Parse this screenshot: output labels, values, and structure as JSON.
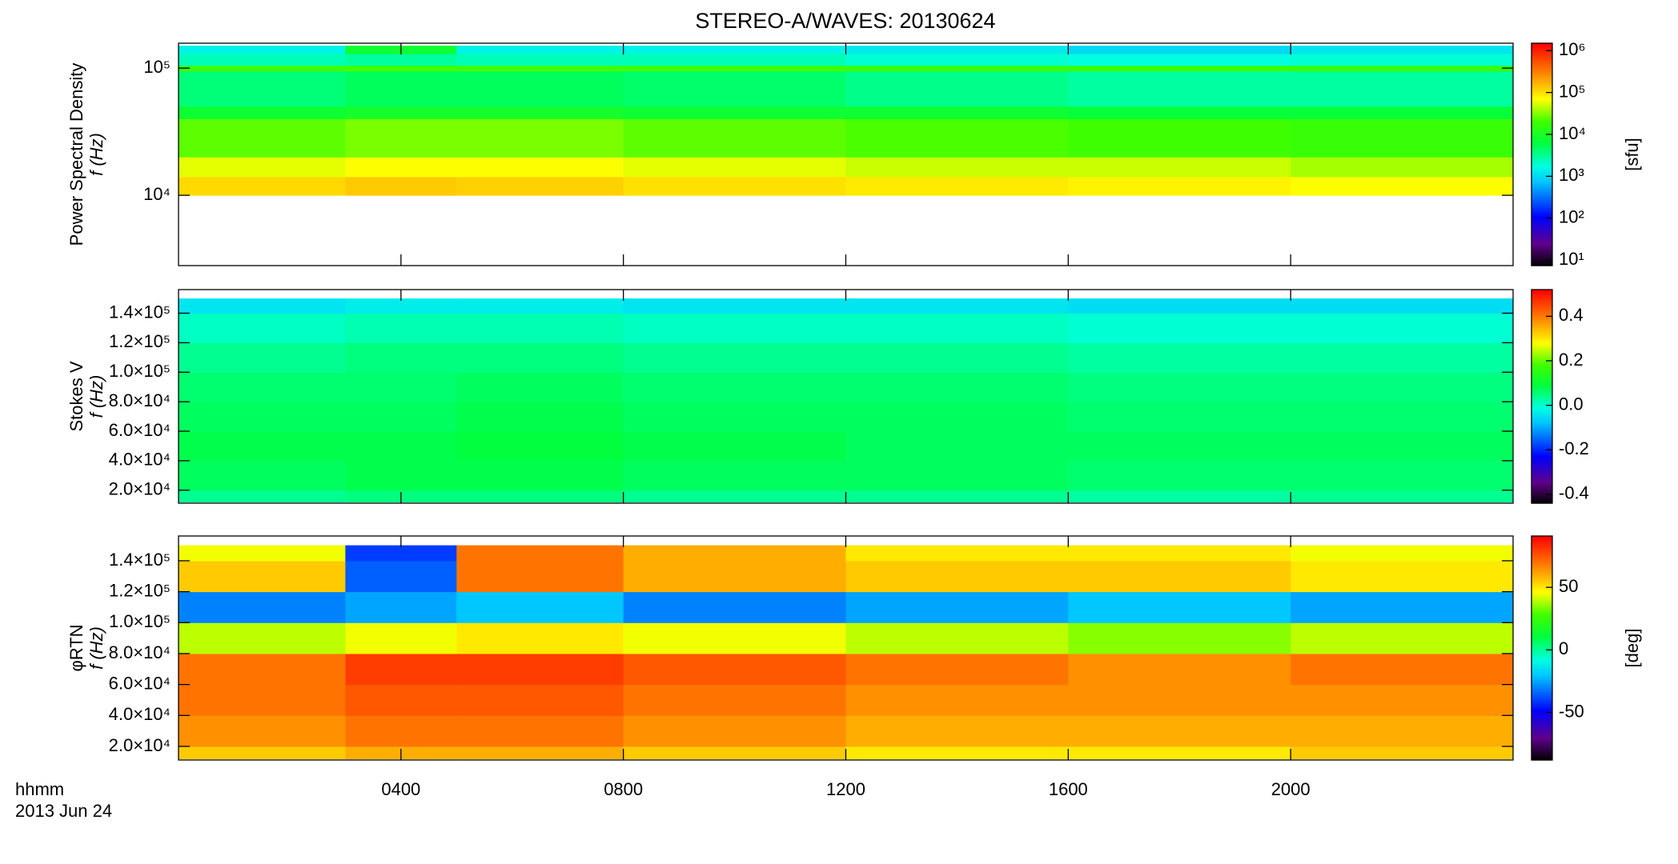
{
  "chart_data": [
    {
      "type": "heatmap",
      "title": "STEREO-A/WAVES: 20130624",
      "ylabel": "Power Spectral Density",
      "ylabel2": "f (Hz)",
      "zlabel": "[sfu]",
      "ylog": true,
      "zlog": true,
      "xlim": [
        0,
        24
      ],
      "ylim": [
        2800,
        157000
      ],
      "zlim": [
        7.4,
        1500000
      ],
      "yticks": [
        {
          "value": 10000,
          "label": "10⁴"
        },
        {
          "value": 100000,
          "label": "10⁵"
        }
      ],
      "zticks": [
        {
          "value": 10,
          "label": "10¹"
        },
        {
          "value": 100,
          "label": "10²"
        },
        {
          "value": 1000,
          "label": "10³"
        },
        {
          "value": 10000,
          "label": "10⁴"
        },
        {
          "value": 100000,
          "label": "10⁵"
        },
        {
          "value": 1000000,
          "label": "10⁶"
        }
      ],
      "xbins": [
        0,
        3,
        5,
        8,
        12,
        16,
        20,
        24
      ],
      "ybins": [
        10000,
        14000,
        20000,
        40000,
        50000,
        95000,
        105000,
        130000,
        150000
      ],
      "z": [
        [
          110000,
          130000,
          120000,
          100000,
          90000,
          80000,
          70000
        ],
        [
          60000,
          70000,
          70000,
          60000,
          50000,
          50000,
          40000
        ],
        [
          25000,
          30000,
          30000,
          25000,
          22000,
          20000,
          18000
        ],
        [
          8000,
          9000,
          9000,
          8000,
          8000,
          7000,
          7000
        ],
        [
          4000,
          5000,
          5000,
          4500,
          3500,
          3000,
          3000
        ],
        [
          20000,
          20000,
          20000,
          20000,
          18000,
          18000,
          18000
        ],
        [
          2500,
          3000,
          2500,
          2500,
          2000,
          1800,
          2000
        ],
        [
          1500,
          8000,
          1500,
          1500,
          1300,
          1000,
          1200
        ]
      ]
    },
    {
      "type": "heatmap",
      "ylabel": "Stokes V",
      "ylabel2": "f (Hz)",
      "ylog": false,
      "zlog": false,
      "xlim": [
        0,
        24
      ],
      "ylim": [
        11200,
        156000
      ],
      "zlim": [
        -0.44,
        0.52
      ],
      "yticks": [
        {
          "value": 20000,
          "label": "2.0×10⁴"
        },
        {
          "value": 40000,
          "label": "4.0×10⁴"
        },
        {
          "value": 60000,
          "label": "6.0×10⁴"
        },
        {
          "value": 80000,
          "label": "8.0×10⁴"
        },
        {
          "value": 100000,
          "label": "1.0×10⁵"
        },
        {
          "value": 120000,
          "label": "1.2×10⁵"
        },
        {
          "value": 140000,
          "label": "1.4×10⁵"
        }
      ],
      "zticks": [
        -0.4,
        -0.2,
        {
          "value": 0,
          "label": "0.0"
        },
        0.2,
        0.4
      ],
      "xbins": [
        0,
        3,
        5,
        8,
        12,
        16,
        20,
        24
      ],
      "ybins": [
        12000,
        20000,
        40000,
        60000,
        80000,
        100000,
        120000,
        140000,
        150000
      ],
      "z": [
        [
          0.04,
          0.05,
          0.05,
          0.04,
          0.04,
          0.03,
          0.04
        ],
        [
          0.07,
          0.08,
          0.08,
          0.07,
          0.07,
          0.06,
          0.06
        ],
        [
          0.08,
          0.08,
          0.09,
          0.08,
          0.07,
          0.07,
          0.07
        ],
        [
          0.07,
          0.07,
          0.08,
          0.07,
          0.07,
          0.06,
          0.06
        ],
        [
          0.06,
          0.06,
          0.07,
          0.06,
          0.06,
          0.05,
          0.05
        ],
        [
          0.04,
          0.05,
          0.05,
          0.04,
          0.04,
          0.03,
          0.03
        ],
        [
          0.01,
          0.02,
          0.02,
          0.01,
          0.01,
          0.0,
          0.0
        ],
        [
          -0.04,
          -0.03,
          -0.03,
          -0.04,
          -0.04,
          -0.05,
          -0.05
        ]
      ]
    },
    {
      "type": "heatmap",
      "ylabel": "φRTN",
      "ylabel2": "f (Hz)",
      "zlabel": "[deg]",
      "ylog": false,
      "zlog": false,
      "xlim": [
        0,
        24
      ],
      "ylim": [
        11200,
        156000
      ],
      "zlim": [
        -88,
        91
      ],
      "yticks": [
        {
          "value": 20000,
          "label": "2.0×10⁴"
        },
        {
          "value": 40000,
          "label": "4.0×10⁴"
        },
        {
          "value": 60000,
          "label": "6.0×10⁴"
        },
        {
          "value": 80000,
          "label": "8.0×10⁴"
        },
        {
          "value": 100000,
          "label": "1.0×10⁵"
        },
        {
          "value": 120000,
          "label": "1.2×10⁵"
        },
        {
          "value": 140000,
          "label": "1.4×10⁵"
        }
      ],
      "zticks": [
        -50,
        0,
        50
      ],
      "xticks": [
        {
          "value": 4,
          "label": "0400"
        },
        {
          "value": 8,
          "label": "0800"
        },
        {
          "value": 12,
          "label": "1200"
        },
        {
          "value": 16,
          "label": "1600"
        },
        {
          "value": 20,
          "label": "2000"
        }
      ],
      "xlabel": "hhmm",
      "date": "2013 Jun 24",
      "xbins": [
        0,
        3,
        5,
        8,
        12,
        16,
        20,
        24
      ],
      "ybins": [
        12000,
        20000,
        40000,
        60000,
        80000,
        100000,
        120000,
        140000,
        150000
      ],
      "z": [
        [
          55,
          60,
          60,
          55,
          50,
          50,
          55
        ],
        [
          65,
          70,
          70,
          65,
          60,
          60,
          60
        ],
        [
          70,
          75,
          75,
          70,
          65,
          65,
          65
        ],
        [
          70,
          80,
          80,
          75,
          70,
          65,
          70
        ],
        [
          40,
          45,
          50,
          45,
          40,
          35,
          40
        ],
        [
          -30,
          -25,
          -20,
          -30,
          -25,
          -20,
          -25
        ],
        [
          55,
          -35,
          70,
          60,
          55,
          55,
          50
        ],
        [
          45,
          -40,
          70,
          60,
          50,
          50,
          45
        ]
      ]
    }
  ]
}
